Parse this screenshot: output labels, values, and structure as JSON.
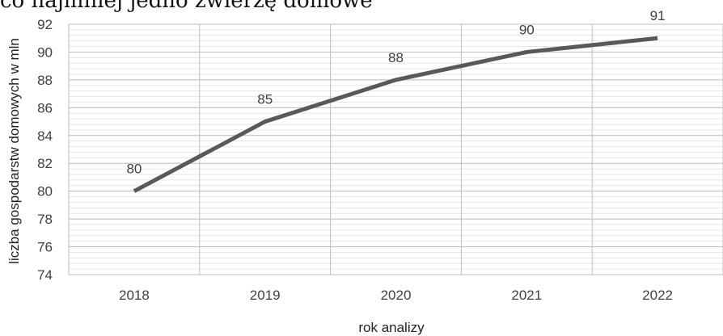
{
  "chart_data": {
    "type": "line",
    "title": "co najmniej jedno zwierzę domowe",
    "xlabel": "rok analizy",
    "ylabel": "liczba gospodarstw domowych w mln",
    "categories": [
      "2018",
      "2019",
      "2020",
      "2021",
      "2022"
    ],
    "series": [
      {
        "values": [
          80,
          85,
          88,
          90,
          91
        ],
        "data_labels": [
          "80",
          "85",
          "88",
          "90",
          "91"
        ]
      }
    ],
    "ylim": [
      74,
      92
    ],
    "yticks": [
      "74",
      "76",
      "78",
      "80",
      "82",
      "84",
      "86",
      "88",
      "90",
      "92"
    ],
    "grid": true,
    "colors": {
      "line": "#595959",
      "grid_major": "#bfbfbf",
      "grid_minor": "#e6e6e6",
      "text": "#404040"
    }
  }
}
